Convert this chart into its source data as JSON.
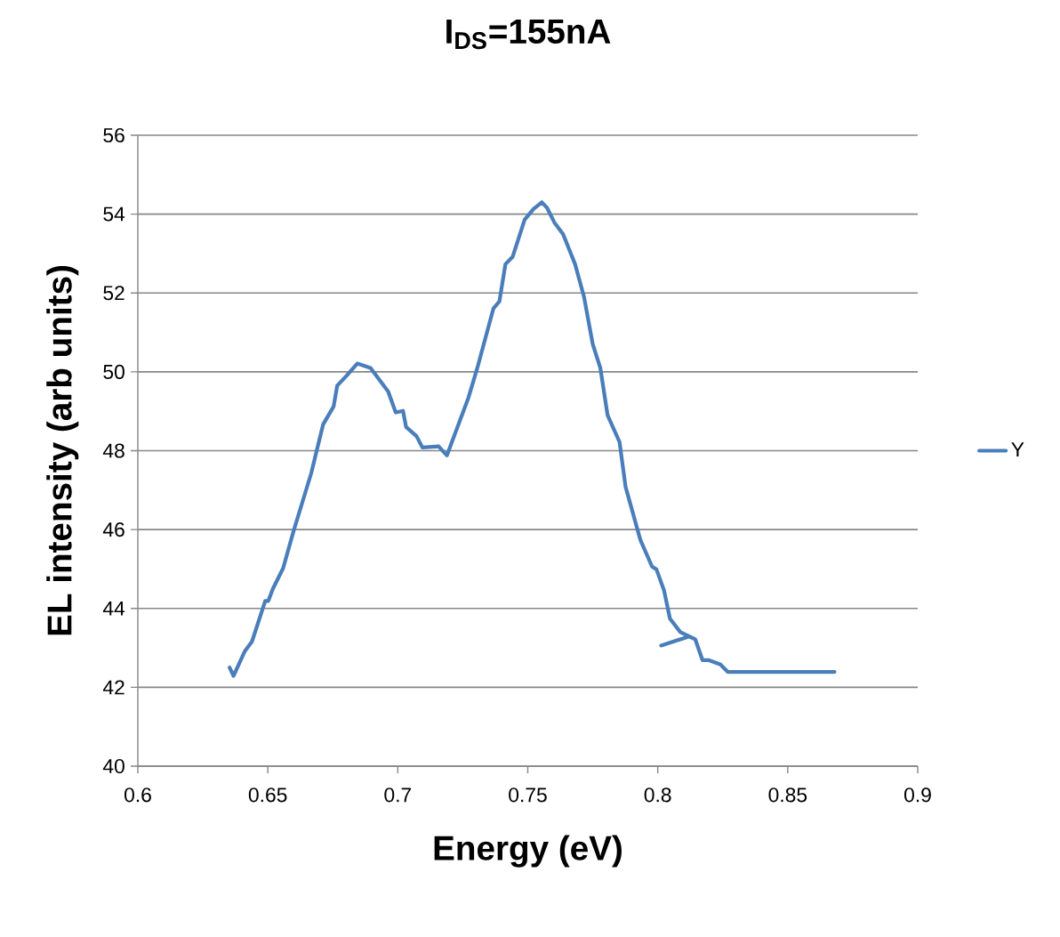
{
  "chart_data": {
    "type": "line",
    "title": "I$_{DS}$=155nA",
    "xlabel": "Energy (eV)",
    "ylabel": "EL intensity (arb units)",
    "series": [
      {
        "name": "Y",
        "color": "#4a7ebb",
        "x": [
          0.6353,
          0.6368,
          0.6411,
          0.6439,
          0.649,
          0.6502,
          0.6519,
          0.6559,
          0.6599,
          0.6667,
          0.6688,
          0.6713,
          0.6753,
          0.6767,
          0.6804,
          0.6844,
          0.6895,
          0.6963,
          0.6992,
          0.702,
          0.7032,
          0.7072,
          0.7095,
          0.7157,
          0.7189,
          0.7272,
          0.7306,
          0.7368,
          0.7391,
          0.7414,
          0.7442,
          0.7488,
          0.7522,
          0.7554,
          0.7574,
          0.7602,
          0.7636,
          0.7682,
          0.7716,
          0.775,
          0.7779,
          0.7807,
          0.7853,
          0.7876,
          0.7933,
          0.7978,
          0.7995,
          0.8024,
          0.8047,
          0.8087,
          0.8121,
          0.8013,
          0.8121,
          0.8144,
          0.8172,
          0.8195,
          0.8241,
          0.8269,
          0.868
        ],
        "values": [
          42.5,
          42.29,
          42.91,
          43.16,
          44.19,
          44.19,
          44.49,
          45.02,
          45.96,
          47.43,
          48.0,
          48.67,
          49.12,
          49.65,
          49.91,
          50.21,
          50.1,
          49.5,
          48.97,
          49.01,
          48.6,
          48.37,
          48.08,
          48.11,
          47.88,
          49.35,
          50.1,
          51.61,
          51.79,
          52.73,
          52.92,
          53.86,
          54.13,
          54.3,
          54.16,
          53.79,
          53.49,
          52.73,
          51.91,
          50.7,
          50.1,
          48.9,
          48.22,
          47.09,
          45.74,
          45.06,
          44.99,
          44.46,
          43.74,
          43.4,
          43.29,
          43.06,
          43.29,
          43.22,
          42.69,
          42.69,
          42.58,
          42.39,
          42.39
        ]
      }
    ],
    "xlim": [
      0.6,
      0.9
    ],
    "xticks": [
      0.6,
      0.65,
      0.7,
      0.75,
      0.8,
      0.85,
      0.9
    ],
    "ylim": [
      40,
      56
    ],
    "yticks": [
      40,
      42,
      44,
      46,
      48,
      50,
      52,
      54,
      56
    ],
    "grid": "y",
    "legend": "right",
    "marker": "none",
    "line_style": "solid"
  }
}
